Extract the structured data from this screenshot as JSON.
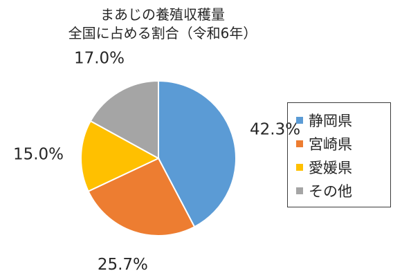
{
  "chart_data": {
    "type": "pie",
    "title_lines": [
      "まあじの養殖収穫量",
      "全国に占める割合（令和6年）"
    ],
    "slices": [
      {
        "name": "静岡県",
        "value": 42.3,
        "label": "42.3%",
        "color": "#5b9bd5"
      },
      {
        "name": "宮崎県",
        "value": 25.7,
        "label": "25.7%",
        "color": "#ed7d31"
      },
      {
        "name": "愛媛県",
        "value": 15.0,
        "label": "15.0%",
        "color": "#ffc000"
      },
      {
        "name": "その他",
        "value": 17.0,
        "label": "17.0%",
        "color": "#a5a5a5"
      }
    ],
    "legend_position": "right"
  }
}
